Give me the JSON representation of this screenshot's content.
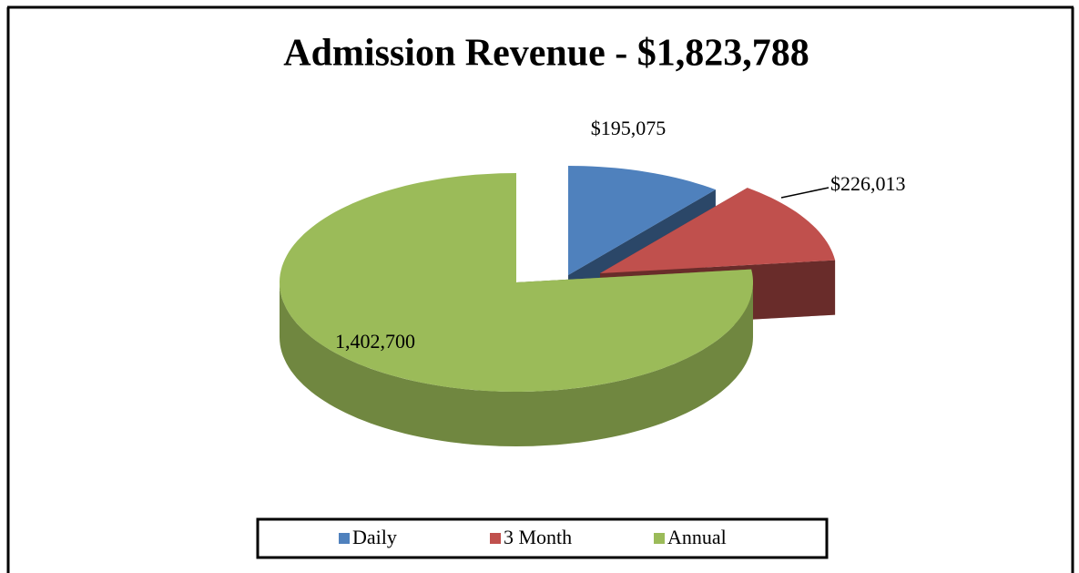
{
  "chart_data": {
    "type": "pie",
    "title": "Admission Revenue - $1,823,788",
    "categories": [
      "Daily",
      "3 Month",
      "Annual"
    ],
    "values": [
      195075,
      226013,
      1402700
    ],
    "value_labels": [
      "$195,075",
      "$226,013",
      "1,402,700"
    ],
    "colors": [
      "#4f81bd",
      "#c0504d",
      "#9bbb59"
    ],
    "legend": "bottom"
  }
}
